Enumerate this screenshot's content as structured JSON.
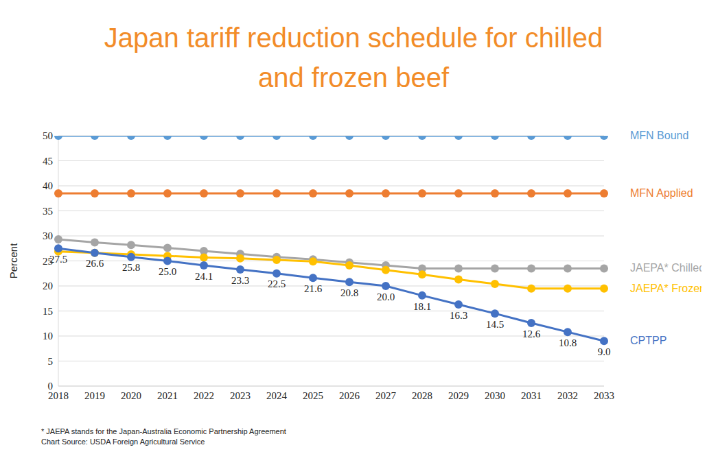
{
  "chart_data": {
    "type": "line",
    "title": "Japan tariff reduction schedule for chilled and frozen beef",
    "y_label": "Percent",
    "annotations": [
      "* JAEPA stands for the Japan-Australia Economic Partnership Agreement",
      "Chart Source: USDA Foreign Agricultural Service"
    ],
    "categories": [
      "2018",
      "2019",
      "2020",
      "2021",
      "2022",
      "2023",
      "2024",
      "2025",
      "2026",
      "2027",
      "2028",
      "2029",
      "2030",
      "2031",
      "2032",
      "2033"
    ],
    "series": [
      {
        "name": "MFN Bound",
        "color": "#5b9bd5",
        "marker": "circle",
        "values": [
          50,
          50,
          50,
          50,
          50,
          50,
          50,
          50,
          50,
          50,
          50,
          50,
          50,
          50,
          50,
          50
        ]
      },
      {
        "name": "MFN Applied",
        "color": "#ed7d31",
        "marker": "circle",
        "values": [
          38.5,
          38.5,
          38.5,
          38.5,
          38.5,
          38.5,
          38.5,
          38.5,
          38.5,
          38.5,
          38.5,
          38.5,
          38.5,
          38.5,
          38.5,
          38.5
        ]
      },
      {
        "name": "JAEPA* Chilled",
        "color": "#a5a5a5",
        "marker": "circle",
        "values": [
          29.3,
          28.7,
          28.2,
          27.6,
          27.0,
          26.4,
          25.8,
          25.3,
          24.7,
          24.1,
          23.5,
          23.5,
          23.5,
          23.5,
          23.5,
          23.5
        ]
      },
      {
        "name": "JAEPA* Frozen",
        "color": "#ffc000",
        "marker": "circle",
        "values": [
          26.9,
          26.6,
          26.3,
          26.0,
          25.7,
          25.5,
          25.2,
          24.9,
          24.1,
          23.2,
          22.3,
          21.3,
          20.4,
          19.5,
          19.5,
          19.5
        ]
      },
      {
        "name": "CPTPP",
        "color": "#4472c4",
        "marker": "circle",
        "data_labels": true,
        "values": [
          27.5,
          26.6,
          25.8,
          25.0,
          24.1,
          23.3,
          22.5,
          21.6,
          20.8,
          20.0,
          18.1,
          16.3,
          14.5,
          12.6,
          10.8,
          9.0
        ],
        "value_labels": [
          "27.5",
          "26.6",
          "25.8",
          "25.0",
          "24.1",
          "23.3",
          "22.5",
          "21.6",
          "20.8",
          "20.0",
          "18.1",
          "16.3",
          "14.5",
          "12.6",
          "10.8",
          "9.0"
        ]
      }
    ],
    "ylim": [
      0,
      50
    ],
    "yticks": [
      0,
      5,
      10,
      15,
      20,
      25,
      30,
      35,
      40,
      45,
      50
    ],
    "grid": true,
    "legend": "right"
  }
}
